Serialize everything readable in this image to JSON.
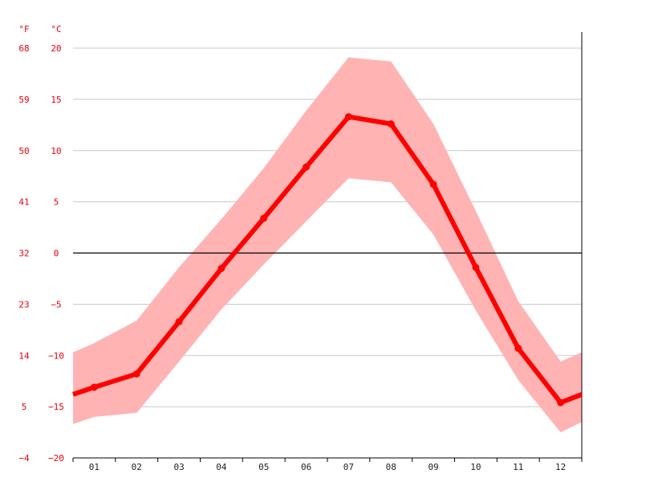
{
  "chart_data": {
    "type": "line",
    "x_unit_label": "",
    "y_unit_labels": {
      "fahrenheit": "°F",
      "celsius": "°C"
    },
    "categories": [
      "01",
      "02",
      "03",
      "04",
      "05",
      "06",
      "07",
      "08",
      "09",
      "10",
      "11",
      "12"
    ],
    "series": [
      {
        "values": [
          -13.1,
          -11.8,
          -6.7,
          -1.5,
          3.4,
          8.4,
          13.3,
          12.6,
          6.7,
          -1.4,
          -9.3,
          -14.6
        ]
      }
    ],
    "band": {
      "min": [
        -16.0,
        -15.6,
        -10.6,
        -5.5,
        -1.1,
        3.1,
        7.3,
        6.9,
        1.8,
        -5.6,
        -12.4,
        -17.5
      ],
      "max": [
        -8.8,
        -6.6,
        -1.4,
        3.3,
        8.3,
        13.9,
        19.1,
        18.7,
        12.6,
        4.1,
        -4.7,
        -10.6
      ]
    },
    "start_value": -13.8,
    "end_value": -13.8,
    "band_start": {
      "min": -16.7,
      "max": -9.7
    },
    "band_end": {
      "min": -16.5,
      "max": -9.7
    },
    "y_ticks_celsius": [
      "20",
      "15",
      "10",
      "5",
      "0",
      "−5",
      "−10",
      "−15",
      "−20"
    ],
    "y_ticks_fahrenheit": [
      "68",
      "59",
      "50",
      "41",
      "32",
      "23",
      "14",
      "5",
      "−4"
    ],
    "ylim": [
      -20,
      20
    ],
    "grid": true,
    "colors": {
      "line": "#ff0000",
      "band": "#ffb3b3",
      "grid": "#c8c8c8",
      "zero_line": "#000000",
      "tick_text": "#e8000b"
    }
  }
}
